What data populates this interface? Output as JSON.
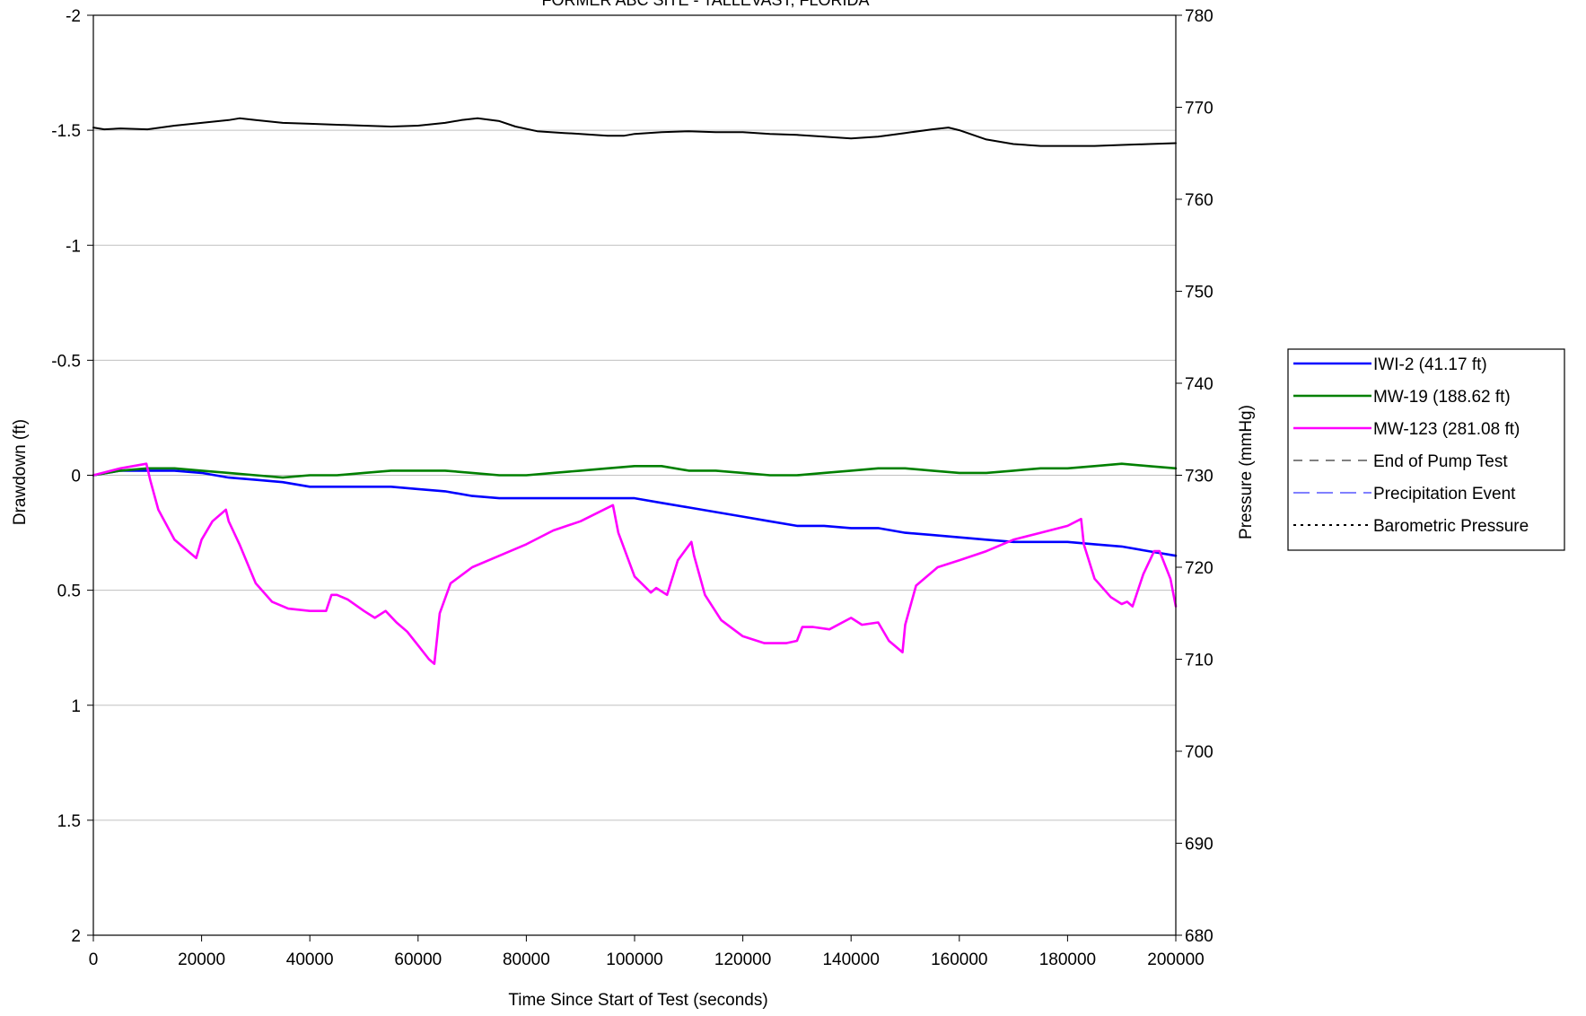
{
  "chart_data": {
    "type": "line",
    "title": "FORMER ABC SITE - TALLEVAST, FLORIDA",
    "xlabel": "Time Since Start of Test (seconds)",
    "ylabel": "Drawdown (ft)",
    "y2label": "Pressure (mmHg)",
    "xlim": [
      0,
      200000
    ],
    "ylim": [
      2,
      -2
    ],
    "y_reversed": true,
    "y2lim": [
      680,
      780
    ],
    "x_ticks": [
      "0",
      "20000",
      "40000",
      "60000",
      "80000",
      "100000",
      "120000",
      "140000",
      "160000",
      "180000",
      "200000"
    ],
    "y_ticks": [
      "-2",
      "-1.5",
      "-1",
      "-0.5",
      "0",
      "0.5",
      "1",
      "1.5",
      "2"
    ],
    "y2_ticks": [
      "780",
      "770",
      "760",
      "750",
      "740",
      "730",
      "720",
      "710",
      "700",
      "690",
      "680"
    ],
    "grid": "horizontal",
    "legend_position": "right",
    "series": [
      {
        "name": "IWI-2 (41.17 ft)",
        "color": "#0000ff",
        "axis": "left",
        "style": "solid",
        "x": [
          0,
          5000,
          10000,
          15000,
          20000,
          25000,
          30000,
          35000,
          40000,
          45000,
          50000,
          55000,
          60000,
          65000,
          70000,
          75000,
          80000,
          85000,
          90000,
          95000,
          100000,
          105000,
          110000,
          115000,
          120000,
          125000,
          130000,
          135000,
          140000,
          145000,
          150000,
          155000,
          160000,
          165000,
          170000,
          175000,
          180000,
          185000,
          190000,
          195000,
          200000
        ],
        "y": [
          0,
          -0.02,
          -0.02,
          -0.02,
          -0.01,
          0.01,
          0.02,
          0.03,
          0.05,
          0.05,
          0.05,
          0.05,
          0.06,
          0.07,
          0.09,
          0.1,
          0.1,
          0.1,
          0.1,
          0.1,
          0.1,
          0.12,
          0.14,
          0.16,
          0.18,
          0.2,
          0.22,
          0.22,
          0.23,
          0.23,
          0.25,
          0.26,
          0.27,
          0.28,
          0.29,
          0.29,
          0.29,
          0.3,
          0.31,
          0.33,
          0.35
        ]
      },
      {
        "name": "MW-19 (188.62 ft)",
        "color": "#008000",
        "axis": "left",
        "style": "solid",
        "x": [
          0,
          5000,
          10000,
          15000,
          20000,
          25000,
          30000,
          35000,
          40000,
          45000,
          50000,
          55000,
          60000,
          65000,
          70000,
          75000,
          80000,
          85000,
          90000,
          95000,
          100000,
          105000,
          110000,
          115000,
          120000,
          125000,
          130000,
          135000,
          140000,
          145000,
          150000,
          155000,
          160000,
          165000,
          170000,
          175000,
          180000,
          185000,
          190000,
          195000,
          200000
        ],
        "y": [
          0,
          -0.02,
          -0.03,
          -0.03,
          -0.02,
          -0.01,
          0,
          0.01,
          0,
          0,
          -0.01,
          -0.02,
          -0.02,
          -0.02,
          -0.01,
          0,
          0,
          -0.01,
          -0.02,
          -0.03,
          -0.04,
          -0.04,
          -0.02,
          -0.02,
          -0.01,
          0,
          0,
          -0.01,
          -0.02,
          -0.03,
          -0.03,
          -0.02,
          -0.01,
          -0.01,
          -0.02,
          -0.03,
          -0.03,
          -0.04,
          -0.05,
          -0.04,
          -0.03
        ]
      },
      {
        "name": "MW-123 (281.08 ft)",
        "color": "#ff00ff",
        "axis": "left",
        "style": "solid",
        "x": [
          0,
          5000,
          9800,
          10500,
          12000,
          15000,
          18000,
          19000,
          20000,
          22000,
          24500,
          25000,
          27000,
          30000,
          33000,
          36000,
          40000,
          43000,
          44000,
          45000,
          47000,
          50000,
          52000,
          54000,
          56000,
          58000,
          60000,
          62000,
          63000,
          64000,
          66000,
          70000,
          75000,
          80000,
          85000,
          90000,
          96000,
          97000,
          100000,
          103000,
          104000,
          106000,
          108000,
          110500,
          111000,
          113000,
          116000,
          120000,
          124000,
          128000,
          130000,
          131000,
          133000,
          136000,
          140000,
          142000,
          145000,
          147000,
          149500,
          150000,
          152000,
          156000,
          160000,
          165000,
          170000,
          175000,
          180000,
          182500,
          183000,
          185000,
          188000,
          190000,
          191000,
          192000,
          194000,
          196000,
          197000,
          199000,
          200000
        ],
        "y": [
          0,
          -0.03,
          -0.05,
          0.02,
          0.15,
          0.28,
          0.34,
          0.36,
          0.28,
          0.2,
          0.15,
          0.2,
          0.3,
          0.47,
          0.55,
          0.58,
          0.59,
          0.59,
          0.52,
          0.52,
          0.54,
          0.59,
          0.62,
          0.59,
          0.64,
          0.68,
          0.74,
          0.8,
          0.82,
          0.6,
          0.47,
          0.4,
          0.35,
          0.3,
          0.24,
          0.2,
          0.13,
          0.25,
          0.44,
          0.51,
          0.49,
          0.52,
          0.37,
          0.29,
          0.35,
          0.52,
          0.63,
          0.7,
          0.73,
          0.73,
          0.72,
          0.66,
          0.66,
          0.67,
          0.62,
          0.65,
          0.64,
          0.72,
          0.77,
          0.65,
          0.48,
          0.4,
          0.37,
          0.33,
          0.28,
          0.25,
          0.22,
          0.19,
          0.3,
          0.45,
          0.53,
          0.56,
          0.55,
          0.57,
          0.43,
          0.33,
          0.33,
          0.45,
          0.57
        ]
      },
      {
        "name": "End of Pump Test",
        "color": "#808080",
        "axis": "left",
        "style": "dashdash",
        "x": [],
        "y": []
      },
      {
        "name": "Precipitation Event",
        "color": "#8080ff",
        "axis": "left",
        "style": "longdash",
        "x": [],
        "y": []
      },
      {
        "name": "Barometric Pressure",
        "color": "#000000",
        "axis": "right",
        "style": "dotted",
        "x": [
          0,
          2000,
          5000,
          10000,
          15000,
          20000,
          25000,
          27000,
          30000,
          35000,
          40000,
          45000,
          50000,
          55000,
          60000,
          65000,
          68000,
          71000,
          75000,
          78000,
          82000,
          87000,
          90000,
          95000,
          98000,
          100000,
          105000,
          110000,
          115000,
          120000,
          125000,
          130000,
          135000,
          140000,
          145000,
          150000,
          155000,
          158000,
          160000,
          165000,
          170000,
          175000,
          180000,
          185000,
          190000,
          195000,
          200000
        ],
        "y": [
          767.8,
          767.6,
          767.7,
          767.6,
          768.0,
          768.3,
          768.6,
          768.8,
          768.6,
          768.3,
          768.2,
          768.1,
          768.0,
          767.9,
          768.0,
          768.3,
          768.6,
          768.8,
          768.5,
          767.9,
          767.4,
          767.2,
          767.1,
          766.9,
          766.9,
          767.1,
          767.3,
          767.4,
          767.3,
          767.3,
          767.1,
          767.0,
          766.8,
          766.6,
          766.8,
          767.2,
          767.6,
          767.8,
          767.5,
          766.5,
          766.0,
          765.8,
          765.8,
          765.8,
          765.9,
          766.0,
          766.1
        ]
      }
    ]
  }
}
